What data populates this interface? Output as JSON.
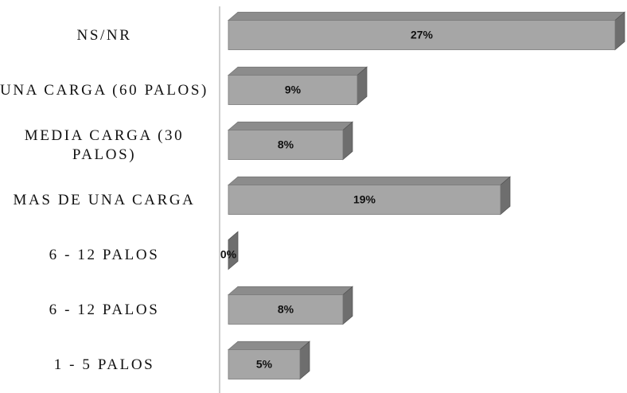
{
  "chart_data": {
    "type": "bar",
    "orientation": "horizontal",
    "three_d": true,
    "categories": [
      "NS/NR",
      "UNA CARGA (60 PALOS)",
      "MEDIA CARGA (30 PALOS)",
      "MAS DE UNA CARGA",
      "6 - 12 PALOS",
      "6 - 12 PALOS",
      "1 - 5 PALOS"
    ],
    "values": [
      27,
      9,
      8,
      19,
      0,
      8,
      5
    ],
    "value_labels": [
      "27%",
      "9%",
      "8%",
      "19%",
      "0%",
      "8%",
      "5%"
    ],
    "color": "#a6a6a6",
    "xlim": [
      0,
      27
    ]
  }
}
